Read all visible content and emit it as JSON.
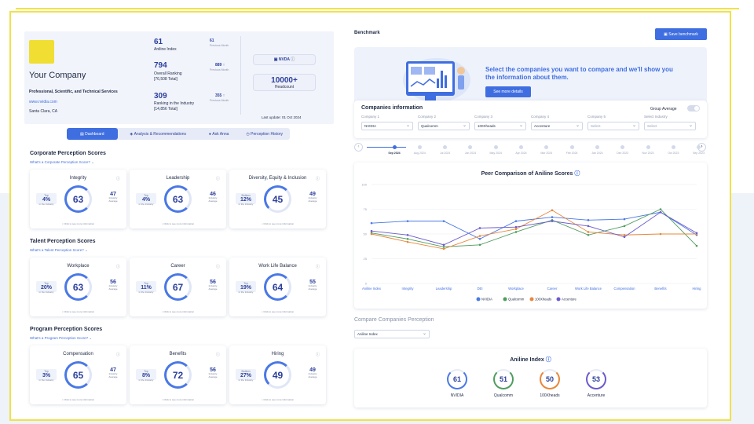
{
  "company": {
    "name": "Your Company",
    "industry": "Professional, Scientific, and Technical Services",
    "website": "www.nvidia.com",
    "location": "Santa Clara, CA",
    "ticker": "NVDA",
    "headcount_value": "10000+",
    "headcount_label": "Headcount",
    "last_update": "Last update: 01 Oct 2024"
  },
  "stats": [
    {
      "value": "61",
      "label": "Aniline Index",
      "prev": "61",
      "prev_label": "Previous Month"
    },
    {
      "value": "794",
      "label": "Overall Ranking",
      "sub": "[76,508 Total]",
      "prev": "889 ↑",
      "prev_label": "Previous Month"
    },
    {
      "value": "309",
      "label": "Ranking in the Industry",
      "sub": "[14,856 Total]",
      "prev": "355 ↑",
      "prev_label": "Previous Month"
    }
  ],
  "tabs": [
    {
      "label": "Dashboard",
      "icon": "dashboard-icon"
    },
    {
      "label": "Analysis & Recommendations",
      "icon": "analysis-icon"
    },
    {
      "label": "Ask Anna",
      "icon": "chat-icon"
    },
    {
      "label": "Perception History",
      "icon": "history-icon"
    }
  ],
  "sections": [
    {
      "title": "Corporate Perception Scores",
      "link": "What's a Corporate Perception Score? ⌄",
      "cards": [
        {
          "title": "Integrity",
          "score": 63,
          "left_top": "Top",
          "left_value": "4%",
          "left_bottom": "in the Industry",
          "right_value": "47",
          "right_bottom": "Industry Average",
          "foot": "Click to see more information"
        },
        {
          "title": "Leadership",
          "score": 63,
          "left_top": "Top",
          "left_value": "4%",
          "left_bottom": "in the Industry",
          "right_value": "46",
          "right_bottom": "Industry Average",
          "foot": "Click to see more information"
        },
        {
          "title": "Diversity, Equity & Inclusion",
          "score": 45,
          "left_top": "Bottom",
          "left_value": "12%",
          "left_bottom": "in the Industry",
          "right_value": "49",
          "right_bottom": "Industry Average",
          "foot": "Click to see more information"
        }
      ]
    },
    {
      "title": "Talent Perception Scores",
      "link": "What's a Talent Perception Score? ⌄",
      "cards": [
        {
          "title": "Workplace",
          "score": 63,
          "left_top": "Top",
          "left_value": "20%",
          "left_bottom": "in the Industry",
          "right_value": "56",
          "right_bottom": "Industry Average",
          "foot": "Click to see more information"
        },
        {
          "title": "Career",
          "score": 67,
          "left_top": "Top",
          "left_value": "11%",
          "left_bottom": "in the Industry",
          "right_value": "56",
          "right_bottom": "Industry Average",
          "foot": "Click to see more information"
        },
        {
          "title": "Work Life Balance",
          "score": 64,
          "left_top": "Top",
          "left_value": "19%",
          "left_bottom": "in the Industry",
          "right_value": "55",
          "right_bottom": "Industry Average",
          "foot": "Click to see more information"
        }
      ]
    },
    {
      "title": "Program Perception Scores",
      "link": "What's a Program Perception Score? ⌄",
      "cards": [
        {
          "title": "Compensation",
          "score": 65,
          "left_top": "Top",
          "left_value": "3%",
          "left_bottom": "in the Industry",
          "right_value": "47",
          "right_bottom": "Industry Average",
          "foot": "Click to see more information"
        },
        {
          "title": "Benefits",
          "score": 72,
          "left_top": "Top",
          "left_value": "8%",
          "left_bottom": "in the Industry",
          "right_value": "56",
          "right_bottom": "Industry Average",
          "foot": "Click to see more information"
        },
        {
          "title": "Hiring",
          "score": 49,
          "left_top": "Bottom",
          "left_value": "27%",
          "left_bottom": "in the Industry",
          "right_value": "49",
          "right_bottom": "Industry Average",
          "foot": "Click to see more information"
        }
      ]
    }
  ],
  "benchmark": {
    "title": "Benchmark",
    "save_label": "Save benchmark",
    "hero_text": "Select the companies you want to compare and we'll show you the information about them.",
    "hero_button": "See more details",
    "companies_title": "Companies information",
    "group_average": "Group Average",
    "company_fields": [
      {
        "label": "Company 1",
        "value": "NVIDIA"
      },
      {
        "label": "Company 2",
        "value": "Qualcomm"
      },
      {
        "label": "Company 3",
        "value": "100Xheads"
      },
      {
        "label": "Company 4",
        "value": "Accenture"
      },
      {
        "label": "Company 5",
        "value": "Select"
      },
      {
        "label": "Select Industry",
        "value": "Select"
      }
    ],
    "timeline": [
      "Sep 2024",
      "Aug 2024",
      "Jul 2024",
      "Jun 2024",
      "May 2024",
      "Apr 2024",
      "Mar 2024",
      "Feb 2024",
      "Jan 2024",
      "Dec 2023",
      "Nov 2023",
      "Oct 2023",
      "Sep 2023"
    ],
    "compare_title": "Compare Companies Perception",
    "compare_select": "Aniline Index",
    "index_title": "Aniline Index",
    "index_scores": [
      {
        "name": "NVIDIA",
        "value": "61",
        "color": "#4a78e5"
      },
      {
        "name": "Qualcomm",
        "value": "51",
        "color": "#4f9d5e"
      },
      {
        "name": "100Xheads",
        "value": "50",
        "color": "#e8873a"
      },
      {
        "name": "Accenture",
        "value": "53",
        "color": "#6a5acd"
      }
    ]
  },
  "chart_data": {
    "type": "line",
    "title": "Peer Comparison of Aniline Scores",
    "categories": [
      "Aniline Index",
      "Integrity",
      "Leadership",
      "DEI",
      "Workplace",
      "Career",
      "Work Life Balance",
      "Compensation",
      "Benefits",
      "Hiring"
    ],
    "ylim": [
      0,
      100
    ],
    "yticks": [
      0,
      25,
      50,
      75,
      100
    ],
    "legend": "bottom",
    "series": [
      {
        "name": "NVIDIA",
        "color": "#4a78e5",
        "values": [
          61,
          63,
          63,
          45,
          63,
          67,
          64,
          65,
          72,
          49
        ]
      },
      {
        "name": "Qualcomm",
        "color": "#4f9d5e",
        "values": [
          51,
          45,
          37,
          39,
          52,
          64,
          49,
          58,
          75,
          38
        ]
      },
      {
        "name": "100Xheads",
        "color": "#e8873a",
        "values": [
          50,
          42,
          35,
          48,
          55,
          74,
          52,
          49,
          50,
          50
        ]
      },
      {
        "name": "Accenture",
        "color": "#6a5acd",
        "values": [
          53,
          49,
          39,
          56,
          57,
          63,
          58,
          47,
          72,
          51
        ]
      }
    ]
  }
}
